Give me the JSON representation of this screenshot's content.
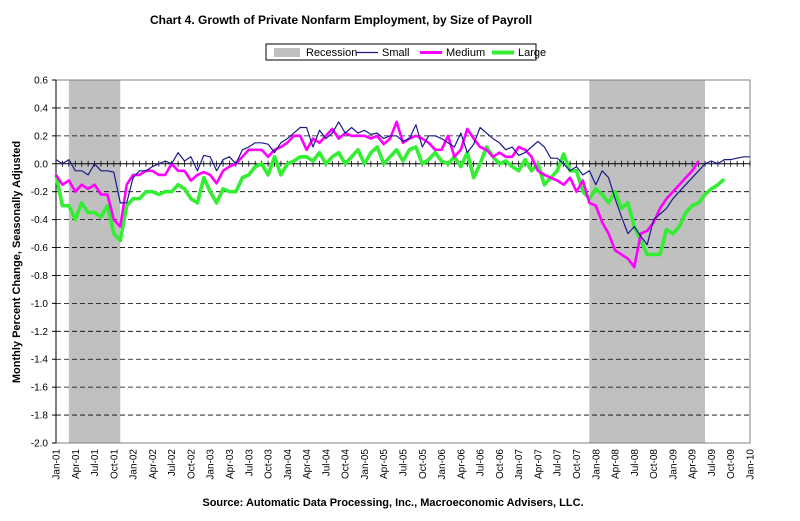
{
  "chart_data": {
    "type": "line",
    "title": "Chart 4.  Growth of Private Nonfarm Employment, by Size of Payroll",
    "ylabel": "Monthly Percent Change, Seasonally Adjusted",
    "source": "Source: Automatic Data Processing, Inc., Macroeconomic Advisers, LLC.",
    "ylim": [
      -2.0,
      0.6
    ],
    "ytick_labels": [
      "0.6",
      "0.4",
      "0.2",
      "0.0",
      "-0.2",
      "-0.4",
      "-0.6",
      "-0.8",
      "-1.0",
      "-1.2",
      "-1.4",
      "-1.6",
      "-1.8",
      "-2.0"
    ],
    "yticks": [
      0.6,
      0.4,
      0.2,
      0.0,
      -0.2,
      -0.4,
      -0.6,
      -0.8,
      -1.0,
      -1.2,
      -1.4,
      -1.6,
      -1.8,
      -2.0
    ],
    "xtick_labels": [
      "Jan-01",
      "Apr-01",
      "Jul-01",
      "Oct-01",
      "Jan-02",
      "Apr-02",
      "Jul-02",
      "Oct-02",
      "Jan-03",
      "Apr-03",
      "Jul-03",
      "Oct-03",
      "Jan-04",
      "Apr-04",
      "Jul-04",
      "Oct-04",
      "Jan-05",
      "Apr-05",
      "Jul-05",
      "Oct-05",
      "Jan-06",
      "Apr-06",
      "Jul-06",
      "Oct-06",
      "Jan-07",
      "Apr-07",
      "Jul-07",
      "Oct-07",
      "Jan-08",
      "Apr-08",
      "Jul-08",
      "Oct-08",
      "Jan-09",
      "Apr-09",
      "Jul-09",
      "Oct-09",
      "Jan-10"
    ],
    "x_start": "Jan-01",
    "x_end": "Jan-10",
    "grid": "horizontal dashed",
    "legend_position": "top-center",
    "recessions": [
      {
        "start": "Mar-01",
        "end": "Nov-01"
      },
      {
        "start": "Dec-07",
        "end": "Jun-09"
      }
    ],
    "series": [
      {
        "name": "Small",
        "color": "#1a1a8c",
        "values": [
          0.03,
          0.0,
          0.03,
          -0.05,
          -0.05,
          -0.08,
          0.0,
          -0.05,
          -0.05,
          -0.06,
          -0.28,
          -0.28,
          -0.1,
          -0.05,
          -0.05,
          -0.02,
          0.0,
          0.02,
          0.0,
          0.08,
          0.02,
          0.05,
          -0.05,
          0.06,
          0.05,
          -0.05,
          0.03,
          0.05,
          0.0,
          0.1,
          0.12,
          0.15,
          0.15,
          0.14,
          0.08,
          0.15,
          0.18,
          0.22,
          0.26,
          0.26,
          0.12,
          0.24,
          0.18,
          0.22,
          0.3,
          0.22,
          0.26,
          0.22,
          0.24,
          0.21,
          0.22,
          0.18,
          0.2,
          0.2,
          0.16,
          0.18,
          0.28,
          0.12,
          0.2,
          0.2,
          0.18,
          0.15,
          0.12,
          0.22,
          0.08,
          0.14,
          0.26,
          0.22,
          0.18,
          0.15,
          0.1,
          0.12,
          0.06,
          0.08,
          0.12,
          0.16,
          0.12,
          0.04,
          0.04,
          0.0,
          -0.05,
          -0.02,
          -0.08,
          -0.05,
          -0.15,
          -0.05,
          -0.1,
          -0.25,
          -0.38,
          -0.5,
          -0.45,
          -0.52,
          -0.58,
          -0.4,
          -0.36,
          -0.32,
          -0.25,
          -0.2,
          -0.15,
          -0.1,
          -0.05,
          0.0,
          0.02,
          0.0,
          0.03,
          0.03,
          0.04,
          0.05,
          0.05
        ]
      },
      {
        "name": "Medium",
        "color": "#ff00ff",
        "values": [
          -0.08,
          -0.15,
          -0.12,
          -0.2,
          -0.15,
          -0.18,
          -0.15,
          -0.22,
          -0.22,
          -0.4,
          -0.45,
          -0.15,
          -0.08,
          -0.08,
          -0.05,
          -0.05,
          -0.08,
          -0.08,
          0.0,
          -0.05,
          -0.05,
          -0.12,
          -0.08,
          -0.06,
          -0.08,
          -0.14,
          -0.05,
          -0.02,
          0.0,
          0.05,
          0.1,
          0.1,
          0.1,
          0.05,
          0.1,
          0.12,
          0.15,
          0.2,
          0.2,
          0.1,
          0.18,
          0.15,
          0.2,
          0.25,
          0.18,
          0.22,
          0.2,
          0.2,
          0.2,
          0.18,
          0.2,
          0.14,
          0.18,
          0.3,
          0.15,
          0.18,
          0.2,
          0.18,
          0.15,
          0.1,
          0.1,
          0.2,
          0.05,
          0.1,
          0.25,
          0.18,
          0.12,
          0.1,
          0.05,
          0.08,
          0.05,
          0.05,
          0.12,
          0.1,
          0.05,
          -0.05,
          -0.08,
          -0.1,
          -0.12,
          -0.15,
          -0.1,
          -0.2,
          -0.12,
          -0.28,
          -0.3,
          -0.42,
          -0.5,
          -0.62,
          -0.65,
          -0.68,
          -0.74,
          -0.5,
          -0.48,
          -0.42,
          -0.32,
          -0.25,
          -0.2,
          -0.15,
          -0.1,
          -0.05,
          0.02
        ]
      },
      {
        "name": "Large",
        "color": "#33ee33",
        "values": [
          -0.08,
          -0.3,
          -0.3,
          -0.4,
          -0.28,
          -0.35,
          -0.35,
          -0.38,
          -0.3,
          -0.5,
          -0.55,
          -0.3,
          -0.25,
          -0.25,
          -0.2,
          -0.2,
          -0.22,
          -0.2,
          -0.2,
          -0.15,
          -0.18,
          -0.25,
          -0.28,
          -0.1,
          -0.2,
          -0.28,
          -0.18,
          -0.2,
          -0.2,
          -0.1,
          -0.08,
          -0.02,
          0.0,
          -0.08,
          0.05,
          -0.08,
          0.0,
          0.02,
          0.05,
          0.05,
          0.02,
          0.08,
          0.0,
          0.05,
          0.08,
          0.0,
          0.05,
          0.1,
          0.0,
          0.08,
          0.12,
          0.0,
          0.05,
          0.1,
          0.02,
          0.1,
          0.12,
          0.0,
          0.03,
          0.08,
          0.02,
          0.0,
          0.05,
          -0.02,
          0.08,
          -0.1,
          0.0,
          0.12,
          0.05,
          0.0,
          0.02,
          -0.02,
          -0.05,
          0.03,
          -0.05,
          0.0,
          -0.15,
          -0.1,
          -0.05,
          0.07,
          -0.05,
          -0.05,
          -0.2,
          -0.25,
          -0.18,
          -0.22,
          -0.28,
          -0.2,
          -0.32,
          -0.28,
          -0.45,
          -0.55,
          -0.65,
          -0.65,
          -0.65,
          -0.47,
          -0.5,
          -0.45,
          -0.35,
          -0.3,
          -0.28,
          -0.22,
          -0.18,
          -0.15,
          -0.11
        ]
      }
    ],
    "legend": [
      {
        "label": "Recession",
        "kind": "box",
        "color": "#c0c0c0"
      },
      {
        "label": "Small",
        "kind": "line",
        "color": "#1a1a8c"
      },
      {
        "label": "Medium",
        "kind": "line",
        "color": "#ff00ff"
      },
      {
        "label": "Large",
        "kind": "line",
        "color": "#33ee33"
      }
    ]
  }
}
